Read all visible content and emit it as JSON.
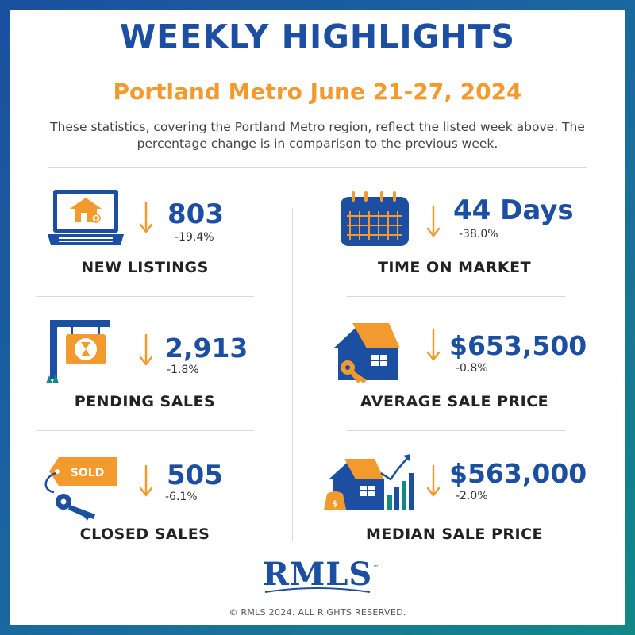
{
  "header": {
    "title": "WEEKLY HIGHLIGHTS",
    "subtitle": "Portland Metro June 21-27, 2024",
    "description": "These statistics, covering the Portland Metro region, reflect the listed week above. The percentage change is in comparison to the previous week."
  },
  "stats": {
    "new_listings": {
      "value": "803",
      "change": "-19.4%",
      "label": "NEW LISTINGS",
      "trend": "down"
    },
    "time_on_market": {
      "value": "44 Days",
      "change": "-38.0%",
      "label": "TIME ON MARKET",
      "trend": "down"
    },
    "pending_sales": {
      "value": "2,913",
      "change": "-1.8%",
      "label": "PENDING SALES",
      "trend": "down"
    },
    "average_sale_price": {
      "value": "$653,500",
      "change": "-0.8%",
      "label": "AVERAGE SALE PRICE",
      "trend": "down"
    },
    "closed_sales": {
      "value": "505",
      "change": "-6.1%",
      "label": "CLOSED SALES",
      "trend": "down",
      "tag_text": "SOLD"
    },
    "median_sale_price": {
      "value": "$563,000",
      "change": "-2.0%",
      "label": "MEDIAN SALE PRICE",
      "trend": "down"
    }
  },
  "footer": {
    "logo_text": "RMLS",
    "logo_trademark": "™",
    "copyright": "© RMLS 2024. ALL RIGHTS RESERVED."
  },
  "colors": {
    "brand_blue": "#1c4fa1",
    "accent_orange": "#f29a2e",
    "teal": "#0f8a86"
  },
  "icons": {
    "new_listings": "laptop-house-icon",
    "time_on_market": "calendar-icon",
    "pending_sales": "pending-sign-icon",
    "average_sale_price": "house-key-icon",
    "closed_sales": "sold-tag-icon",
    "median_sale_price": "house-growth-chart-icon",
    "trend": "down-arrow-icon"
  }
}
